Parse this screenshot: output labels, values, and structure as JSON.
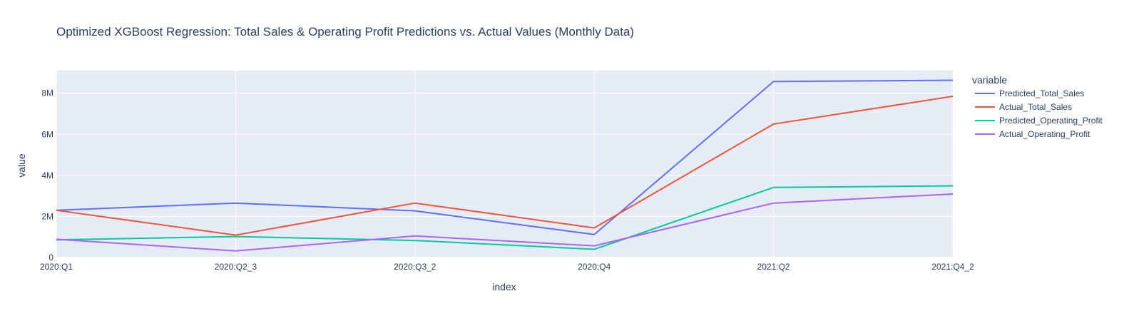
{
  "chart_data": {
    "type": "line",
    "title": "Optimized XGBoost Regression: Total Sales & Operating Profit Predictions vs. Actual Values (Monthly Data)",
    "xlabel": "index",
    "ylabel": "value",
    "categories": [
      "2020:Q1",
      "2020:Q2_3",
      "2020:Q3_2",
      "2020:Q4",
      "2021:Q2",
      "2021:Q4_2"
    ],
    "ylim": [
      0,
      9100000
    ],
    "yticks": [
      0,
      2000000,
      4000000,
      6000000,
      8000000
    ],
    "ytick_labels": [
      "0",
      "2M",
      "4M",
      "6M",
      "8M"
    ],
    "grid": true,
    "legend_title": "variable",
    "legend_position": "right",
    "series": [
      {
        "name": "Predicted_Total_Sales",
        "color": "#636efa",
        "values": [
          2300000,
          2650000,
          2270000,
          1120000,
          8570000,
          8630000
        ]
      },
      {
        "name": "Actual_Total_Sales",
        "color": "#EF553B",
        "values": [
          2300000,
          1090000,
          2650000,
          1440000,
          6500000,
          7850000
        ]
      },
      {
        "name": "Predicted_Operating_Profit",
        "color": "#00cc96",
        "values": [
          860000,
          1020000,
          830000,
          400000,
          3410000,
          3490000
        ]
      },
      {
        "name": "Actual_Operating_Profit",
        "color": "#ab63fa",
        "values": [
          890000,
          320000,
          1050000,
          570000,
          2650000,
          3090000
        ]
      }
    ]
  }
}
